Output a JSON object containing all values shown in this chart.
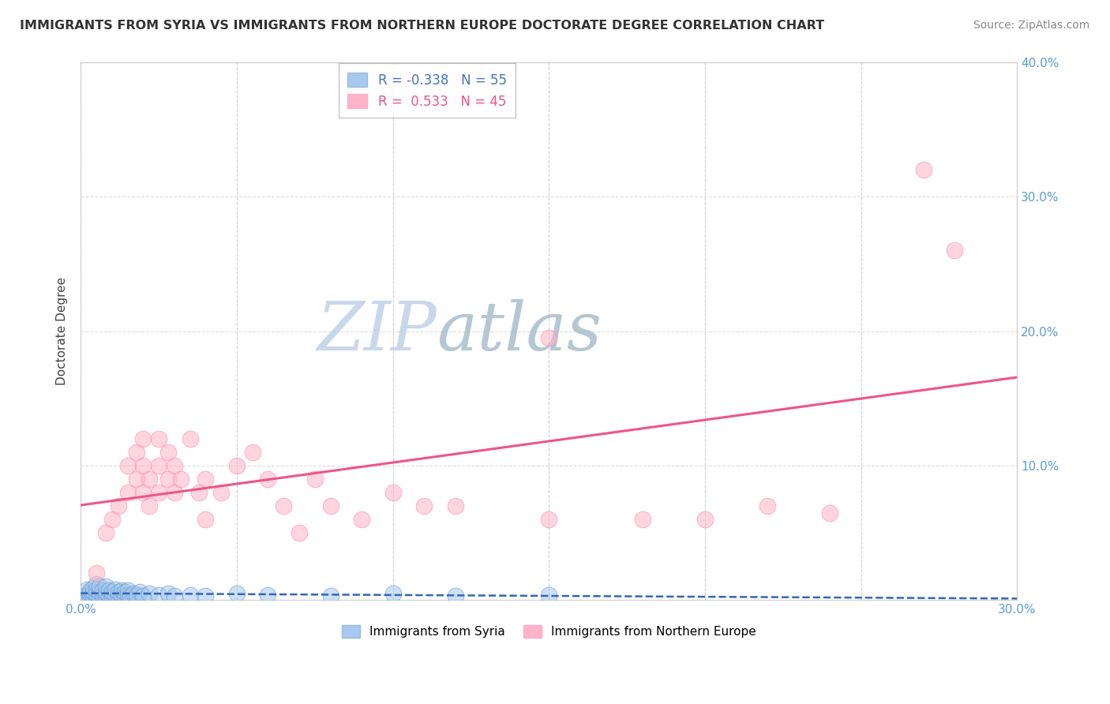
{
  "title": "IMMIGRANTS FROM SYRIA VS IMMIGRANTS FROM NORTHERN EUROPE DOCTORATE DEGREE CORRELATION CHART",
  "source": "Source: ZipAtlas.com",
  "ylabel": "Doctorate Degree",
  "xlabel": "",
  "xlim": [
    0.0,
    0.3
  ],
  "ylim": [
    0.0,
    0.4
  ],
  "xticks": [
    0.0,
    0.05,
    0.1,
    0.15,
    0.2,
    0.25,
    0.3
  ],
  "xticklabels_show": [
    "0.0%",
    "30.0%"
  ],
  "yticks": [
    0.0,
    0.1,
    0.2,
    0.3,
    0.4
  ],
  "yticklabels_right": [
    "",
    "10.0%",
    "20.0%",
    "30.0%",
    "40.0%"
  ],
  "syria_R": -0.338,
  "syria_N": 55,
  "northern_R": 0.533,
  "northern_N": 45,
  "syria_color": "#A8C8F0",
  "northern_color": "#FFB3C8",
  "syria_edge_color": "#6699CC",
  "northern_edge_color": "#FF88AA",
  "syria_line_color": "#3366BB",
  "northern_line_color": "#EE5588",
  "watermark_zip": "ZIP",
  "watermark_atlas": "atlas",
  "watermark_color_zip": "#C8D8EE",
  "watermark_color_atlas": "#B8CCDD",
  "legend_syria_color": "#A8C8F0",
  "legend_northern_color": "#FFB3C8",
  "legend_syria_text_color": "#4472C4",
  "legend_northern_text_color": "#EE5588",
  "syria_points": [
    [
      0.0005,
      0.001
    ],
    [
      0.001,
      0.002
    ],
    [
      0.001,
      0.003
    ],
    [
      0.002,
      0.001
    ],
    [
      0.002,
      0.004
    ],
    [
      0.002,
      0.008
    ],
    [
      0.003,
      0.002
    ],
    [
      0.003,
      0.005
    ],
    [
      0.003,
      0.007
    ],
    [
      0.004,
      0.003
    ],
    [
      0.004,
      0.006
    ],
    [
      0.004,
      0.009
    ],
    [
      0.005,
      0.002
    ],
    [
      0.005,
      0.005
    ],
    [
      0.005,
      0.008
    ],
    [
      0.005,
      0.012
    ],
    [
      0.006,
      0.003
    ],
    [
      0.006,
      0.006
    ],
    [
      0.006,
      0.01
    ],
    [
      0.007,
      0.004
    ],
    [
      0.007,
      0.007
    ],
    [
      0.008,
      0.003
    ],
    [
      0.008,
      0.006
    ],
    [
      0.008,
      0.01
    ],
    [
      0.009,
      0.004
    ],
    [
      0.009,
      0.007
    ],
    [
      0.01,
      0.003
    ],
    [
      0.01,
      0.006
    ],
    [
      0.011,
      0.004
    ],
    [
      0.011,
      0.008
    ],
    [
      0.012,
      0.003
    ],
    [
      0.012,
      0.006
    ],
    [
      0.013,
      0.004
    ],
    [
      0.013,
      0.007
    ],
    [
      0.014,
      0.003
    ],
    [
      0.014,
      0.006
    ],
    [
      0.015,
      0.004
    ],
    [
      0.015,
      0.007
    ],
    [
      0.016,
      0.003
    ],
    [
      0.017,
      0.005
    ],
    [
      0.018,
      0.004
    ],
    [
      0.019,
      0.006
    ],
    [
      0.02,
      0.003
    ],
    [
      0.022,
      0.005
    ],
    [
      0.025,
      0.004
    ],
    [
      0.028,
      0.005
    ],
    [
      0.03,
      0.003
    ],
    [
      0.035,
      0.004
    ],
    [
      0.04,
      0.003
    ],
    [
      0.05,
      0.005
    ],
    [
      0.06,
      0.004
    ],
    [
      0.08,
      0.003
    ],
    [
      0.1,
      0.005
    ],
    [
      0.12,
      0.003
    ],
    [
      0.15,
      0.004
    ]
  ],
  "northern_points": [
    [
      0.005,
      0.02
    ],
    [
      0.008,
      0.05
    ],
    [
      0.01,
      0.06
    ],
    [
      0.012,
      0.07
    ],
    [
      0.015,
      0.08
    ],
    [
      0.015,
      0.1
    ],
    [
      0.018,
      0.09
    ],
    [
      0.018,
      0.11
    ],
    [
      0.02,
      0.08
    ],
    [
      0.02,
      0.1
    ],
    [
      0.02,
      0.12
    ],
    [
      0.022,
      0.07
    ],
    [
      0.022,
      0.09
    ],
    [
      0.025,
      0.08
    ],
    [
      0.025,
      0.1
    ],
    [
      0.025,
      0.12
    ],
    [
      0.028,
      0.09
    ],
    [
      0.028,
      0.11
    ],
    [
      0.03,
      0.08
    ],
    [
      0.03,
      0.1
    ],
    [
      0.032,
      0.09
    ],
    [
      0.035,
      0.12
    ],
    [
      0.038,
      0.08
    ],
    [
      0.04,
      0.06
    ],
    [
      0.04,
      0.09
    ],
    [
      0.045,
      0.08
    ],
    [
      0.05,
      0.1
    ],
    [
      0.055,
      0.11
    ],
    [
      0.06,
      0.09
    ],
    [
      0.065,
      0.07
    ],
    [
      0.07,
      0.05
    ],
    [
      0.075,
      0.09
    ],
    [
      0.08,
      0.07
    ],
    [
      0.09,
      0.06
    ],
    [
      0.1,
      0.08
    ],
    [
      0.11,
      0.07
    ],
    [
      0.12,
      0.07
    ],
    [
      0.15,
      0.06
    ],
    [
      0.18,
      0.06
    ],
    [
      0.2,
      0.06
    ],
    [
      0.22,
      0.07
    ],
    [
      0.24,
      0.065
    ],
    [
      0.27,
      0.32
    ],
    [
      0.28,
      0.26
    ],
    [
      0.15,
      0.195
    ]
  ]
}
